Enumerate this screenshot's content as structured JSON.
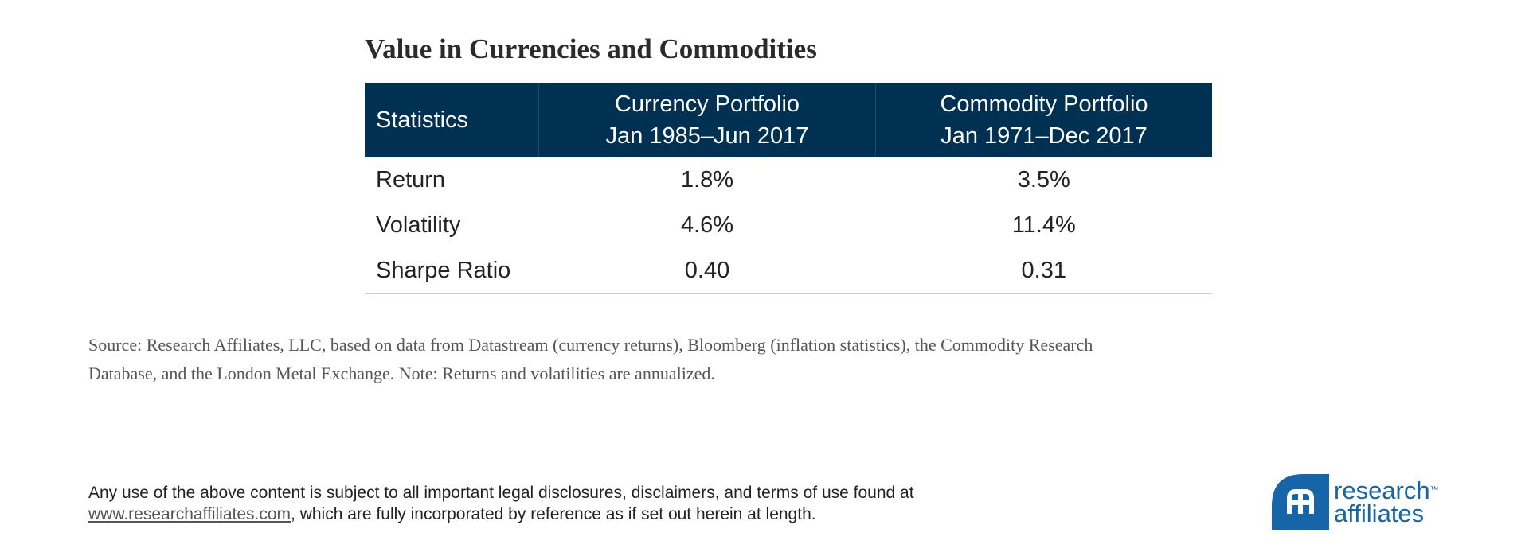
{
  "title": "Value in Currencies and Commodities",
  "table": {
    "header": [
      [
        "Statistics"
      ],
      [
        "Currency Portfolio",
        "Jan 1985–Jun 2017"
      ],
      [
        "Commodity Portfolio",
        "Jan 1971–Dec 2017"
      ]
    ],
    "rows": [
      [
        "Return",
        "1.8%",
        "3.5%"
      ],
      [
        "Volatility",
        "4.6%",
        "11.4%"
      ],
      [
        "Sharpe Ratio",
        "0.40",
        "0.31"
      ]
    ]
  },
  "source": [
    "Source: Research Affiliates, LLC, based on data from Datastream (currency returns), Bloomberg (inflation statistics), the Commodity Research",
    "Database, and the London Metal Exchange. Note: Returns and volatilities are annualized."
  ],
  "disclaimer": {
    "before": "Any use of the above content is subject to all important legal disclosures, disclaimers, and terms of use found at",
    "link": "www.researchaffiliates.com",
    "after": ", which are fully incorporated by reference as if set out herein at length."
  },
  "logo": {
    "line1": "research",
    "tm": "™",
    "line2": "affiliates"
  }
}
